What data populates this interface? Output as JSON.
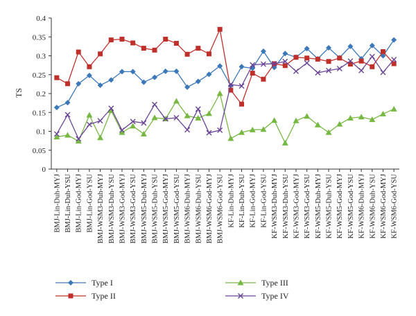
{
  "chart_data": {
    "type": "line",
    "ylabel": "TS",
    "xlabel": "",
    "title": "",
    "ylim": [
      0,
      0.4
    ],
    "yticks": [
      0,
      0.05,
      0.1,
      0.15,
      0.2,
      0.25,
      0.3,
      0.35,
      0.4
    ],
    "ytick_labels": [
      "0",
      "0.05",
      "0.1",
      "0.15",
      "0.2",
      "0.25",
      "0.3",
      "0.35",
      "0.4"
    ],
    "grid": false,
    "legend_position": "bottom",
    "categories": [
      "BMJ-Lin-Duh-MYJ",
      "BMJ-Lin-Duh-YSU",
      "BMJ-Lin-God-MYJ",
      "BMJ-Lin-God-YSU",
      "BMJ-WSM3-Duh-MYJ",
      "BMJ-WSM3-Duh-YSU",
      "BMJ-WSM3-God-MYJ",
      "BMJ-WSM3-God-YSU",
      "BMJ-WSM5-Duh-MYJ",
      "BMJ-WSM5-Duh-YSU",
      "BMJ-WSM5-God-MYJ",
      "BMJ-WSM5-God-YSU",
      "BMJ-WSM6-Duh-MYJ",
      "BMJ-WSM6-Duh-YSU",
      "BMJ-WSM6-God-MYJ",
      "BMJ-WSM6-God-YSU",
      "KF-Lin-Duh-MYJ",
      "KF-Lin-Duh-YSU",
      "KF-Lin-God-MYJ",
      "KF-Lin-God-YSU",
      "KF-WSM3-Duh-MYJ",
      "KF-WSM3-Duh-YSU",
      "KF-WSM3-God-MYJ",
      "KF-WSM3-God-YSU",
      "KF-WSM5-Duh-MYJ",
      "KF-WSM5-Duh-YSU",
      "KF-WSM5-God-MYJ",
      "KF-WSM5-God-YSU",
      "KF-WSM6-Duh-MYJ",
      "KF-WSM6-Duh-YSU",
      "KF-WSM6-God-MYJ",
      "KF-WSM6-God-YSU"
    ],
    "series": [
      {
        "name": "Type I",
        "color": "#3a78b9",
        "marker": "diamond",
        "values": [
          0.163,
          0.176,
          0.226,
          0.248,
          0.222,
          0.236,
          0.258,
          0.258,
          0.23,
          0.243,
          0.259,
          0.259,
          0.217,
          0.232,
          0.251,
          0.273,
          0.221,
          0.271,
          0.267,
          0.312,
          0.269,
          0.306,
          0.296,
          0.319,
          0.292,
          0.321,
          0.295,
          0.325,
          0.292,
          0.327,
          0.3,
          0.342
        ]
      },
      {
        "name": "Type II",
        "color": "#c0302b",
        "marker": "square",
        "values": [
          0.242,
          0.226,
          0.31,
          0.271,
          0.305,
          0.342,
          0.344,
          0.334,
          0.32,
          0.315,
          0.344,
          0.333,
          0.304,
          0.32,
          0.305,
          0.37,
          0.209,
          0.172,
          0.254,
          0.238,
          0.279,
          0.274,
          0.296,
          0.294,
          0.291,
          0.285,
          0.294,
          0.278,
          0.286,
          0.271,
          0.311,
          0.279
        ]
      },
      {
        "name": "Type III",
        "color": "#77b843",
        "marker": "triangle",
        "values": [
          0.085,
          0.09,
          0.074,
          0.143,
          0.083,
          0.155,
          0.097,
          0.114,
          0.093,
          0.136,
          0.133,
          0.18,
          0.141,
          0.135,
          0.147,
          0.2,
          0.081,
          0.097,
          0.104,
          0.105,
          0.129,
          0.069,
          0.128,
          0.14,
          0.117,
          0.097,
          0.119,
          0.135,
          0.138,
          0.131,
          0.146,
          0.159
        ]
      },
      {
        "name": "Type IV",
        "color": "#6a4496",
        "marker": "x",
        "values": [
          0.093,
          0.144,
          0.08,
          0.118,
          0.128,
          0.161,
          0.103,
          0.126,
          0.122,
          0.171,
          0.133,
          0.136,
          0.104,
          0.159,
          0.096,
          0.103,
          0.224,
          0.22,
          0.276,
          0.278,
          0.279,
          0.285,
          0.259,
          0.281,
          0.255,
          0.261,
          0.266,
          0.286,
          0.261,
          0.298,
          0.256,
          0.29
        ]
      }
    ]
  }
}
